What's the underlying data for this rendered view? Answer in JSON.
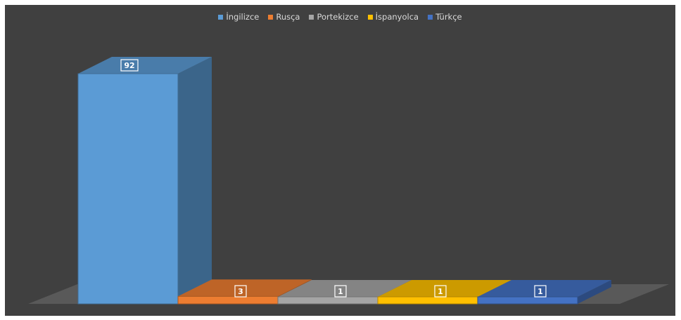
{
  "chart_data": {
    "type": "bar",
    "style": "3d-column",
    "categories": [
      "İngilizce",
      "Rusça",
      "Portekizce",
      "İspanyolca",
      "Türkçe"
    ],
    "values": [
      92,
      3,
      1,
      1,
      1
    ],
    "colors": [
      "#5b9bd5",
      "#ed7d31",
      "#a5a5a5",
      "#ffc000",
      "#4472c4"
    ],
    "title": "",
    "xlabel": "",
    "ylabel": "",
    "legend_position": "top",
    "data_labels": true,
    "grid": false,
    "background": "#404040"
  }
}
